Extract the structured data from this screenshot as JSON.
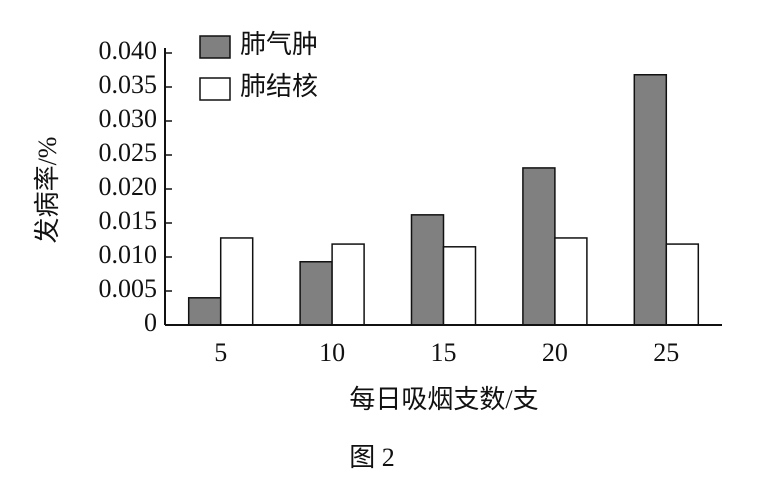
{
  "chart_data": {
    "type": "bar",
    "caption": "图 2",
    "x_label": "每日吸烟支数/支",
    "y_label": "发病率/%",
    "categories": [
      "5",
      "10",
      "15",
      "20",
      "25"
    ],
    "series": [
      {
        "name": "肺气肿",
        "color": "#808080",
        "values": [
          0.004,
          0.0093,
          0.0162,
          0.0231,
          0.0368
        ]
      },
      {
        "name": "肺结核",
        "color": "#ffffff",
        "values": [
          0.0128,
          0.0119,
          0.0115,
          0.0128,
          0.0119
        ]
      }
    ],
    "ylim": [
      0,
      0.04
    ],
    "yticks": [
      0,
      {
        "value": 0.005,
        "label": "0.005"
      },
      {
        "value": 0.01,
        "label": "0.010"
      },
      {
        "value": 0.015,
        "label": "0.015"
      },
      {
        "value": 0.02,
        "label": "0.020"
      },
      {
        "value": 0.025,
        "label": "0.025"
      },
      {
        "value": 0.03,
        "label": "0.030"
      },
      {
        "value": 0.035,
        "label": "0.035"
      },
      {
        "value": 0.04,
        "label": "0.040"
      }
    ],
    "legend": "upper left"
  }
}
